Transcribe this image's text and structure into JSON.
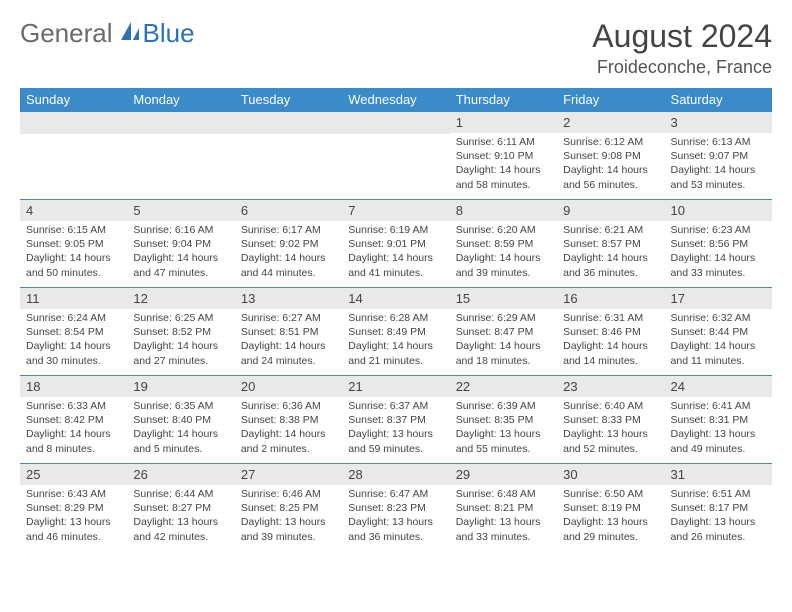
{
  "brand": {
    "part1": "General",
    "part2": "Blue"
  },
  "title": "August 2024",
  "location": "Froideconche, France",
  "colors": {
    "header_bg": "#3b8bc9",
    "header_text": "#ffffff",
    "daynum_bg": "#e9e9e9",
    "border": "#3b8bc9",
    "text": "#444444",
    "logo_gray": "#6a6a6a",
    "logo_blue": "#2d72b5",
    "page_bg": "#ffffff"
  },
  "weekdays": [
    "Sunday",
    "Monday",
    "Tuesday",
    "Wednesday",
    "Thursday",
    "Friday",
    "Saturday"
  ],
  "weeks": [
    [
      null,
      null,
      null,
      null,
      {
        "n": "1",
        "sr": "Sunrise: 6:11 AM",
        "ss": "Sunset: 9:10 PM",
        "dl": "Daylight: 14 hours and 58 minutes."
      },
      {
        "n": "2",
        "sr": "Sunrise: 6:12 AM",
        "ss": "Sunset: 9:08 PM",
        "dl": "Daylight: 14 hours and 56 minutes."
      },
      {
        "n": "3",
        "sr": "Sunrise: 6:13 AM",
        "ss": "Sunset: 9:07 PM",
        "dl": "Daylight: 14 hours and 53 minutes."
      }
    ],
    [
      {
        "n": "4",
        "sr": "Sunrise: 6:15 AM",
        "ss": "Sunset: 9:05 PM",
        "dl": "Daylight: 14 hours and 50 minutes."
      },
      {
        "n": "5",
        "sr": "Sunrise: 6:16 AM",
        "ss": "Sunset: 9:04 PM",
        "dl": "Daylight: 14 hours and 47 minutes."
      },
      {
        "n": "6",
        "sr": "Sunrise: 6:17 AM",
        "ss": "Sunset: 9:02 PM",
        "dl": "Daylight: 14 hours and 44 minutes."
      },
      {
        "n": "7",
        "sr": "Sunrise: 6:19 AM",
        "ss": "Sunset: 9:01 PM",
        "dl": "Daylight: 14 hours and 41 minutes."
      },
      {
        "n": "8",
        "sr": "Sunrise: 6:20 AM",
        "ss": "Sunset: 8:59 PM",
        "dl": "Daylight: 14 hours and 39 minutes."
      },
      {
        "n": "9",
        "sr": "Sunrise: 6:21 AM",
        "ss": "Sunset: 8:57 PM",
        "dl": "Daylight: 14 hours and 36 minutes."
      },
      {
        "n": "10",
        "sr": "Sunrise: 6:23 AM",
        "ss": "Sunset: 8:56 PM",
        "dl": "Daylight: 14 hours and 33 minutes."
      }
    ],
    [
      {
        "n": "11",
        "sr": "Sunrise: 6:24 AM",
        "ss": "Sunset: 8:54 PM",
        "dl": "Daylight: 14 hours and 30 minutes."
      },
      {
        "n": "12",
        "sr": "Sunrise: 6:25 AM",
        "ss": "Sunset: 8:52 PM",
        "dl": "Daylight: 14 hours and 27 minutes."
      },
      {
        "n": "13",
        "sr": "Sunrise: 6:27 AM",
        "ss": "Sunset: 8:51 PM",
        "dl": "Daylight: 14 hours and 24 minutes."
      },
      {
        "n": "14",
        "sr": "Sunrise: 6:28 AM",
        "ss": "Sunset: 8:49 PM",
        "dl": "Daylight: 14 hours and 21 minutes."
      },
      {
        "n": "15",
        "sr": "Sunrise: 6:29 AM",
        "ss": "Sunset: 8:47 PM",
        "dl": "Daylight: 14 hours and 18 minutes."
      },
      {
        "n": "16",
        "sr": "Sunrise: 6:31 AM",
        "ss": "Sunset: 8:46 PM",
        "dl": "Daylight: 14 hours and 14 minutes."
      },
      {
        "n": "17",
        "sr": "Sunrise: 6:32 AM",
        "ss": "Sunset: 8:44 PM",
        "dl": "Daylight: 14 hours and 11 minutes."
      }
    ],
    [
      {
        "n": "18",
        "sr": "Sunrise: 6:33 AM",
        "ss": "Sunset: 8:42 PM",
        "dl": "Daylight: 14 hours and 8 minutes."
      },
      {
        "n": "19",
        "sr": "Sunrise: 6:35 AM",
        "ss": "Sunset: 8:40 PM",
        "dl": "Daylight: 14 hours and 5 minutes."
      },
      {
        "n": "20",
        "sr": "Sunrise: 6:36 AM",
        "ss": "Sunset: 8:38 PM",
        "dl": "Daylight: 14 hours and 2 minutes."
      },
      {
        "n": "21",
        "sr": "Sunrise: 6:37 AM",
        "ss": "Sunset: 8:37 PM",
        "dl": "Daylight: 13 hours and 59 minutes."
      },
      {
        "n": "22",
        "sr": "Sunrise: 6:39 AM",
        "ss": "Sunset: 8:35 PM",
        "dl": "Daylight: 13 hours and 55 minutes."
      },
      {
        "n": "23",
        "sr": "Sunrise: 6:40 AM",
        "ss": "Sunset: 8:33 PM",
        "dl": "Daylight: 13 hours and 52 minutes."
      },
      {
        "n": "24",
        "sr": "Sunrise: 6:41 AM",
        "ss": "Sunset: 8:31 PM",
        "dl": "Daylight: 13 hours and 49 minutes."
      }
    ],
    [
      {
        "n": "25",
        "sr": "Sunrise: 6:43 AM",
        "ss": "Sunset: 8:29 PM",
        "dl": "Daylight: 13 hours and 46 minutes."
      },
      {
        "n": "26",
        "sr": "Sunrise: 6:44 AM",
        "ss": "Sunset: 8:27 PM",
        "dl": "Daylight: 13 hours and 42 minutes."
      },
      {
        "n": "27",
        "sr": "Sunrise: 6:46 AM",
        "ss": "Sunset: 8:25 PM",
        "dl": "Daylight: 13 hours and 39 minutes."
      },
      {
        "n": "28",
        "sr": "Sunrise: 6:47 AM",
        "ss": "Sunset: 8:23 PM",
        "dl": "Daylight: 13 hours and 36 minutes."
      },
      {
        "n": "29",
        "sr": "Sunrise: 6:48 AM",
        "ss": "Sunset: 8:21 PM",
        "dl": "Daylight: 13 hours and 33 minutes."
      },
      {
        "n": "30",
        "sr": "Sunrise: 6:50 AM",
        "ss": "Sunset: 8:19 PM",
        "dl": "Daylight: 13 hours and 29 minutes."
      },
      {
        "n": "31",
        "sr": "Sunrise: 6:51 AM",
        "ss": "Sunset: 8:17 PM",
        "dl": "Daylight: 13 hours and 26 minutes."
      }
    ]
  ]
}
